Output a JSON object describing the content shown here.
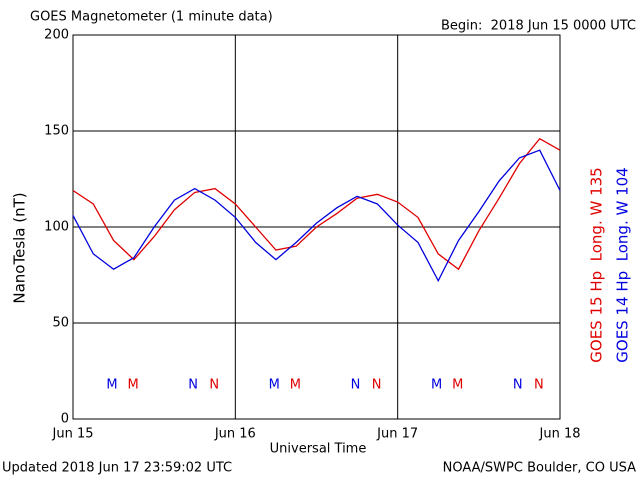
{
  "chart_data": {
    "type": "line",
    "title": "GOES Magnetometer (1 minute data)",
    "subtitle": "Begin:  2018 Jun 15 0000 UTC",
    "ylabel": "NanoTesla (nT)",
    "xlabel": "Universal Time",
    "footer_left": "Updated 2018 Jun 17 23:59:02 UTC",
    "footer_right": "NOAA/SWPC Boulder, CO USA",
    "xlim": [
      0,
      3
    ],
    "xticks": [
      {
        "value": 0,
        "label": "Jun 15"
      },
      {
        "value": 1,
        "label": "Jun 16"
      },
      {
        "value": 2,
        "label": "Jun 17"
      },
      {
        "value": 3,
        "label": "Jun 18"
      }
    ],
    "ylim": [
      0,
      200
    ],
    "yticks": [
      0,
      50,
      100,
      150,
      200
    ],
    "grid": true,
    "x": [
      0,
      0.125,
      0.25,
      0.375,
      0.5,
      0.625,
      0.75,
      0.875,
      1,
      1.125,
      1.25,
      1.375,
      1.5,
      1.625,
      1.75,
      1.875,
      2,
      2.125,
      2.25,
      2.375,
      2.5,
      2.625,
      2.75,
      2.875,
      3
    ],
    "series": [
      {
        "name": "GOES 15 Hp  Long. W 135",
        "color": "#e00000",
        "values": [
          119,
          112,
          93,
          83,
          95,
          109,
          118,
          120,
          112,
          100,
          88,
          90,
          100,
          107,
          115,
          117,
          113,
          105,
          86,
          78,
          98,
          115,
          133,
          146,
          140
        ]
      },
      {
        "name": "GOES 14 Hp  Long. W 104",
        "color": "#0000e0",
        "values": [
          106,
          86,
          78,
          84,
          100,
          114,
          120,
          114,
          105,
          92,
          83,
          92,
          102,
          110,
          116,
          112,
          101,
          92,
          72,
          93,
          108,
          124,
          136,
          140,
          119
        ]
      }
    ],
    "annotations": [
      {
        "text": "M",
        "x": 0.24,
        "color": "#0000e0"
      },
      {
        "text": "M",
        "x": 0.37,
        "color": "#e00000"
      },
      {
        "text": "N",
        "x": 0.74,
        "color": "#0000e0"
      },
      {
        "text": "N",
        "x": 0.87,
        "color": "#e00000"
      },
      {
        "text": "M",
        "x": 1.24,
        "color": "#0000e0"
      },
      {
        "text": "M",
        "x": 1.37,
        "color": "#e00000"
      },
      {
        "text": "N",
        "x": 1.74,
        "color": "#0000e0"
      },
      {
        "text": "N",
        "x": 1.87,
        "color": "#e00000"
      },
      {
        "text": "M",
        "x": 2.24,
        "color": "#0000e0"
      },
      {
        "text": "M",
        "x": 2.37,
        "color": "#e00000"
      },
      {
        "text": "N",
        "x": 2.74,
        "color": "#0000e0"
      },
      {
        "text": "N",
        "x": 2.87,
        "color": "#e00000"
      }
    ]
  }
}
